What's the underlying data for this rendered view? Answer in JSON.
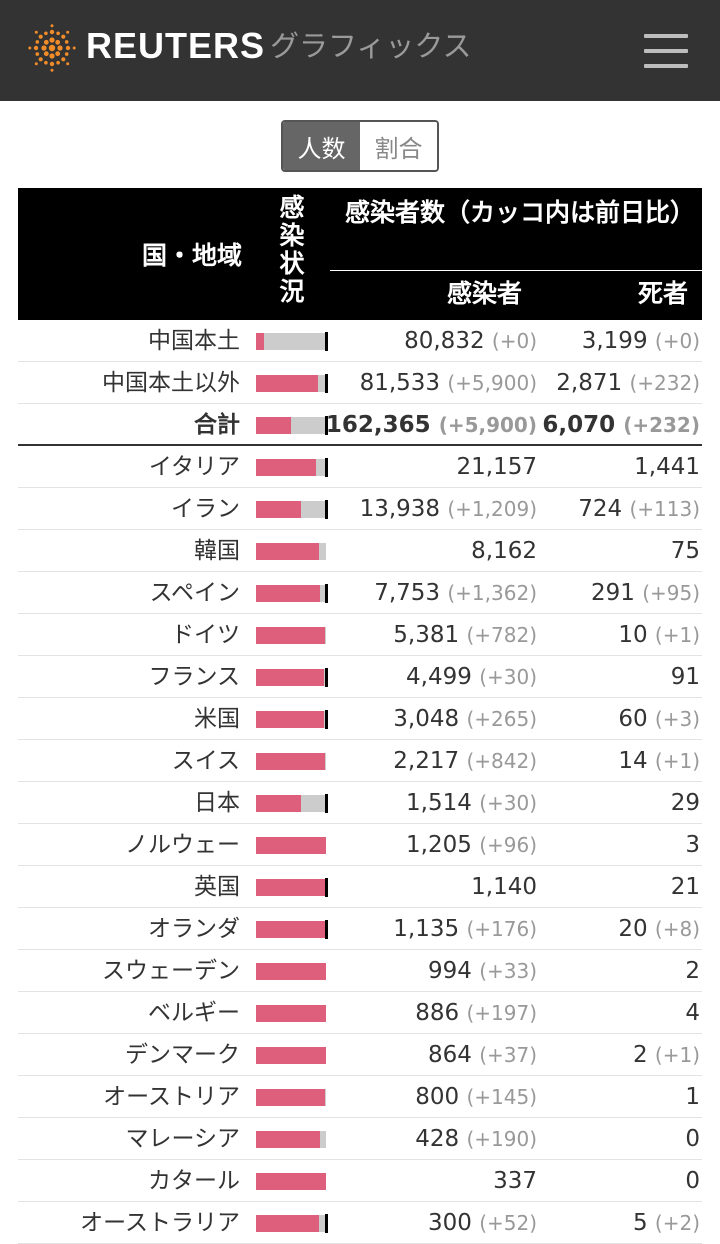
{
  "header": {
    "brand": "REUTERS",
    "sub": "グラフィックス",
    "logo_icon": "reuters-dots-logo",
    "menu_icon": "hamburger-menu-icon"
  },
  "toggle": {
    "options": [
      "人数",
      "割合"
    ],
    "selected": "人数"
  },
  "table": {
    "headers": {
      "country": "国・地域",
      "status": [
        "感",
        "染",
        "状",
        "況"
      ],
      "group": "感染者数（カッコ内は前日比）",
      "cases": "感染者",
      "deaths": "死者"
    },
    "colors": {
      "infected": "#dd5f7c",
      "recovered": "#cccccc",
      "dead": "#000000"
    },
    "rows": [
      {
        "name": "中国本土",
        "cases": "80,832",
        "cases_delta": "(+0)",
        "deaths": "3,199",
        "deaths_delta": "(+0)",
        "infected_share": 0.12,
        "dead": true
      },
      {
        "name": "中国本土以外",
        "cases": "81,533",
        "cases_delta": "(+5,900)",
        "deaths": "2,871",
        "deaths_delta": "(+232)",
        "infected_share": 0.88,
        "dead": true
      },
      {
        "name": "合計",
        "cases": "162,365",
        "cases_delta": "(+5,900)",
        "deaths": "6,070",
        "deaths_delta": "(+232)",
        "infected_share": 0.5,
        "dead": true,
        "total": true
      },
      {
        "name": "イタリア",
        "cases": "21,157",
        "cases_delta": "",
        "deaths": "1,441",
        "deaths_delta": "",
        "infected_share": 0.86,
        "dead": true
      },
      {
        "name": "イラン",
        "cases": "13,938",
        "cases_delta": "(+1,209)",
        "deaths": "724",
        "deaths_delta": "(+113)",
        "infected_share": 0.64,
        "dead": true
      },
      {
        "name": "韓国",
        "cases": "8,162",
        "cases_delta": "",
        "deaths": "75",
        "deaths_delta": "",
        "infected_share": 0.9,
        "dead": false
      },
      {
        "name": "スペイン",
        "cases": "7,753",
        "cases_delta": "(+1,362)",
        "deaths": "291",
        "deaths_delta": "(+95)",
        "infected_share": 0.92,
        "dead": true
      },
      {
        "name": "ドイツ",
        "cases": "5,381",
        "cases_delta": "(+782)",
        "deaths": "10",
        "deaths_delta": "(+1)",
        "infected_share": 0.98,
        "dead": false
      },
      {
        "name": "フランス",
        "cases": "4,499",
        "cases_delta": "(+30)",
        "deaths": "91",
        "deaths_delta": "",
        "infected_share": 0.97,
        "dead": true
      },
      {
        "name": "米国",
        "cases": "3,048",
        "cases_delta": "(+265)",
        "deaths": "60",
        "deaths_delta": "(+3)",
        "infected_share": 0.97,
        "dead": true
      },
      {
        "name": "スイス",
        "cases": "2,217",
        "cases_delta": "(+842)",
        "deaths": "14",
        "deaths_delta": "(+1)",
        "infected_share": 0.99,
        "dead": false
      },
      {
        "name": "日本",
        "cases": "1,514",
        "cases_delta": "(+30)",
        "deaths": "29",
        "deaths_delta": "",
        "infected_share": 0.64,
        "dead": true
      },
      {
        "name": "ノルウェー",
        "cases": "1,205",
        "cases_delta": "(+96)",
        "deaths": "3",
        "deaths_delta": "",
        "infected_share": 1.0,
        "dead": false
      },
      {
        "name": "英国",
        "cases": "1,140",
        "cases_delta": "",
        "deaths": "21",
        "deaths_delta": "",
        "infected_share": 0.98,
        "dead": true
      },
      {
        "name": "オランダ",
        "cases": "1,135",
        "cases_delta": "(+176)",
        "deaths": "20",
        "deaths_delta": "(+8)",
        "infected_share": 0.98,
        "dead": true
      },
      {
        "name": "スウェーデン",
        "cases": "994",
        "cases_delta": "(+33)",
        "deaths": "2",
        "deaths_delta": "",
        "infected_share": 1.0,
        "dead": false
      },
      {
        "name": "ベルギー",
        "cases": "886",
        "cases_delta": "(+197)",
        "deaths": "4",
        "deaths_delta": "",
        "infected_share": 1.0,
        "dead": false
      },
      {
        "name": "デンマーク",
        "cases": "864",
        "cases_delta": "(+37)",
        "deaths": "2",
        "deaths_delta": "(+1)",
        "infected_share": 1.0,
        "dead": false
      },
      {
        "name": "オーストリア",
        "cases": "800",
        "cases_delta": "(+145)",
        "deaths": "1",
        "deaths_delta": "",
        "infected_share": 0.99,
        "dead": false
      },
      {
        "name": "マレーシア",
        "cases": "428",
        "cases_delta": "(+190)",
        "deaths": "0",
        "deaths_delta": "",
        "infected_share": 0.91,
        "dead": false
      },
      {
        "name": "カタール",
        "cases": "337",
        "cases_delta": "",
        "deaths": "0",
        "deaths_delta": "",
        "infected_share": 1.0,
        "dead": false
      },
      {
        "name": "オーストラリア",
        "cases": "300",
        "cases_delta": "(+52)",
        "deaths": "5",
        "deaths_delta": "(+2)",
        "infected_share": 0.9,
        "dead": true
      }
    ]
  }
}
